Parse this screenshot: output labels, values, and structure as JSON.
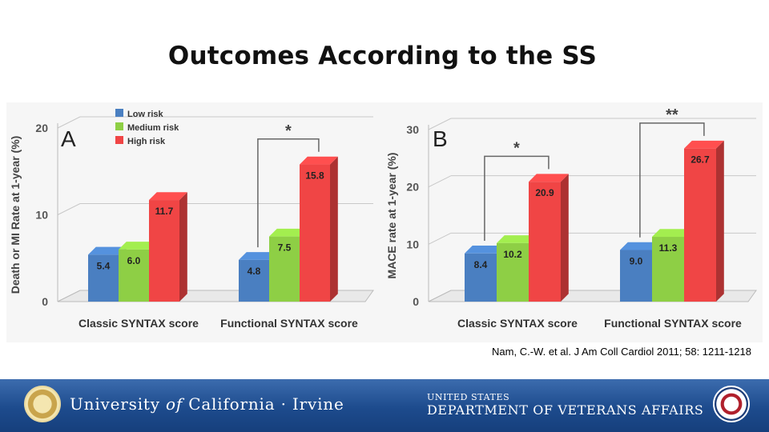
{
  "slide": {
    "title": "Outcomes According to the SS",
    "citation": "Nam, C.-W. et al. J Am Coll Cardiol 2011; 58: 1211-1218"
  },
  "footer": {
    "uci": {
      "part1": "University",
      "part2": "of",
      "part3": "California · Irvine"
    },
    "va": {
      "line1": "UNITED STATES",
      "line2": "DEPARTMENT OF VETERANS AFFAIRS"
    }
  },
  "chart_data": [
    {
      "type": "bar",
      "panel_label": "A",
      "categories": [
        "Classic SYNTAX score",
        "Functional SYNTAX score"
      ],
      "series": [
        {
          "name": "Low risk",
          "color": "#4a7fc1",
          "values": [
            5.4,
            4.8
          ]
        },
        {
          "name": "Medium risk",
          "color": "#8ecf45",
          "values": [
            6.0,
            7.5
          ]
        },
        {
          "name": "High risk",
          "color": "#f04545",
          "values": [
            11.7,
            15.8
          ]
        }
      ],
      "ylabel": "Death or MI Rate at 1-year (%)",
      "ylim": [
        0,
        20
      ],
      "yticks": [
        0,
        10,
        20
      ],
      "grid": true,
      "legend": "top-left",
      "annotations": [
        {
          "text": "*",
          "category": "Functional SYNTAX score",
          "from_series": "Low risk",
          "to_series": "High risk"
        }
      ]
    },
    {
      "type": "bar",
      "panel_label": "B",
      "categories": [
        "Classic SYNTAX score",
        "Functional SYNTAX score"
      ],
      "series": [
        {
          "name": "Low risk",
          "color": "#4a7fc1",
          "values": [
            8.4,
            9.0
          ]
        },
        {
          "name": "Medium risk",
          "color": "#8ecf45",
          "values": [
            10.2,
            11.3
          ]
        },
        {
          "name": "High risk",
          "color": "#f04545",
          "values": [
            20.9,
            26.7
          ]
        }
      ],
      "ylabel": "MACE rate at 1-year (%)",
      "ylim": [
        0,
        30
      ],
      "yticks": [
        0,
        10,
        20,
        30
      ],
      "grid": true,
      "legend": "none",
      "annotations": [
        {
          "text": "*",
          "category": "Classic SYNTAX score",
          "from_series": "Low risk",
          "to_series": "High risk"
        },
        {
          "text": "**",
          "category": "Functional SYNTAX score",
          "from_series": "Low risk",
          "to_series": "High risk"
        }
      ]
    }
  ]
}
